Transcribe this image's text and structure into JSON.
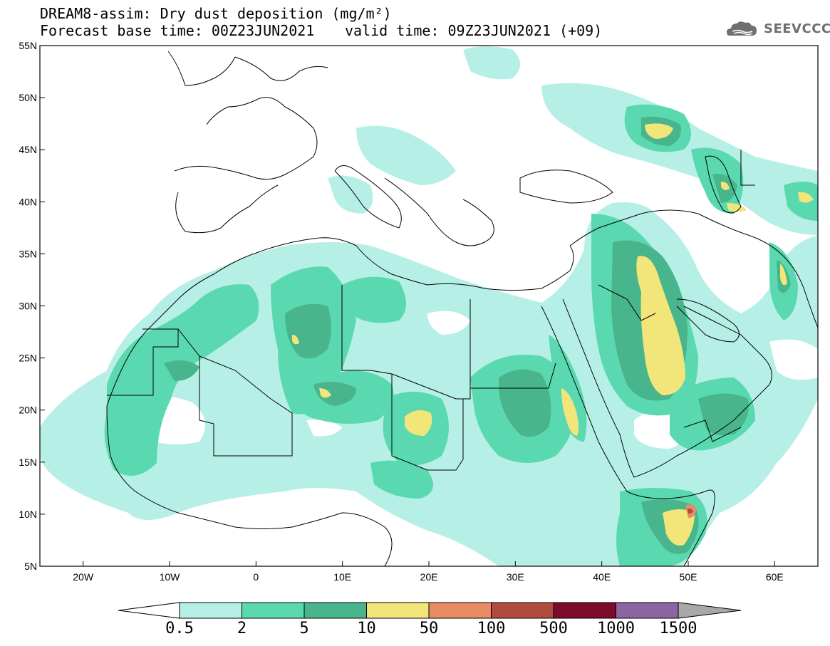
{
  "header": {
    "title_line1": "DREAM8-assim: Dry dust deposition (mg/m²)",
    "title_line2": "Forecast base time: 00Z23JUN2021",
    "valid_time": "valid time: 09Z23JUN2021 (+09)",
    "logo_text": "SEEVCCC"
  },
  "map": {
    "projection": "cylindrical equidistant",
    "lon_range": [
      -25,
      65
    ],
    "lat_range": [
      5,
      55
    ],
    "lat_labels": [
      "55N",
      "50N",
      "45N",
      "40N",
      "35N",
      "30N",
      "25N",
      "20N",
      "15N",
      "10N",
      "5N"
    ],
    "lon_labels": [
      "20W",
      "10W",
      "0",
      "10E",
      "20E",
      "30E",
      "40E",
      "50E",
      "60E"
    ]
  },
  "colorbar": {
    "levels": [
      "0.5",
      "2",
      "5",
      "10",
      "50",
      "100",
      "500",
      "1000",
      "1500"
    ],
    "colors": [
      "#b6efe6",
      "#5ad9b0",
      "#49b58c",
      "#f2e57a",
      "#e98c63",
      "#b04c3d",
      "#7d0b2a",
      "#8b66a0"
    ],
    "under_color": "#ffffff",
    "over_color": "#a8a8a8"
  }
}
